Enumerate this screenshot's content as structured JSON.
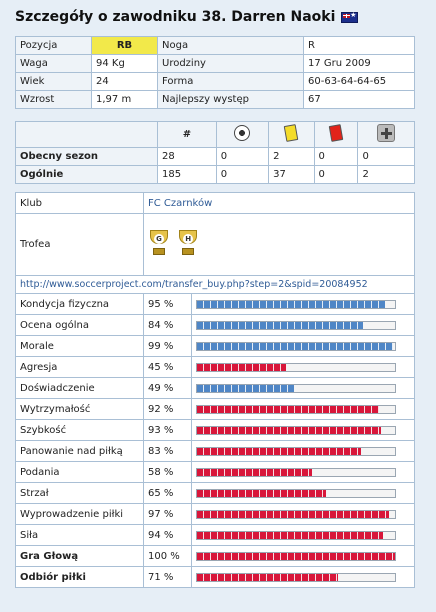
{
  "header": {
    "title": "Szczegóły o zawodniku 38. Darren Naoki",
    "flag": "australia-flag-icon"
  },
  "info": [
    {
      "l1": "Pozycja",
      "v1": "RB",
      "l2": "Noga",
      "v2": "R"
    },
    {
      "l1": "Waga",
      "v1": "94 Kg",
      "l2": "Urodziny",
      "v2": "17 Gru 2009"
    },
    {
      "l1": "Wiek",
      "v1": "24",
      "l2": "Forma",
      "v2": "60-63-64-64-65"
    },
    {
      "l1": "Wzrost",
      "v1": "1,97 m",
      "l2": "Najlepszy występ",
      "v2": "67"
    }
  ],
  "stats": {
    "headers": [
      "#",
      "ball-icon",
      "yellow-card-icon",
      "red-card-icon",
      "injury-cross-icon"
    ],
    "rows": [
      {
        "label": "Obecny sezon",
        "vals": [
          "28",
          "0",
          "2",
          "0",
          "0"
        ]
      },
      {
        "label": "Ogólnie",
        "vals": [
          "185",
          "0",
          "37",
          "0",
          "2"
        ]
      }
    ],
    "colors": {
      "yellow_card": "#f4dc2a",
      "red_card": "#e2231a"
    }
  },
  "club": {
    "label": "Klub",
    "name": "FC Czarnków",
    "trophies_label": "Trofea",
    "trophies": [
      "G",
      "H"
    ],
    "link": "http://www.soccerproject.com/transfer_buy.php?step=2&spid=20084952"
  },
  "skills": [
    {
      "name": "Kondycja fizyczna",
      "value": "95 %",
      "pct": 95,
      "color": "blue",
      "bold": false
    },
    {
      "name": "Ocena ogólna",
      "value": "84 %",
      "pct": 84,
      "color": "blue",
      "bold": false
    },
    {
      "name": "Morale",
      "value": "99 %",
      "pct": 99,
      "color": "blue",
      "bold": false
    },
    {
      "name": "Agresja",
      "value": "45 %",
      "pct": 45,
      "color": "red",
      "bold": false
    },
    {
      "name": "Doświadczenie",
      "value": "49 %",
      "pct": 49,
      "color": "blue",
      "bold": false
    },
    {
      "name": "Wytrzymałość",
      "value": "92 %",
      "pct": 92,
      "color": "red",
      "bold": false
    },
    {
      "name": "Szybkość",
      "value": "93 %",
      "pct": 93,
      "color": "red",
      "bold": false
    },
    {
      "name": "Panowanie nad piłką",
      "value": "83 %",
      "pct": 83,
      "color": "red",
      "bold": false
    },
    {
      "name": "Podania",
      "value": "58 %",
      "pct": 58,
      "color": "red",
      "bold": false
    },
    {
      "name": "Strzał",
      "value": "65 %",
      "pct": 65,
      "color": "red",
      "bold": false
    },
    {
      "name": "Wyprowadzenie piłki",
      "value": "97 %",
      "pct": 97,
      "color": "red",
      "bold": false
    },
    {
      "name": "Siła",
      "value": "94 %",
      "pct": 94,
      "color": "red",
      "bold": false
    },
    {
      "name": "Gra Głową",
      "value": "100 %",
      "pct": 100,
      "color": "red",
      "bold": true
    },
    {
      "name": "Odbiór piłki",
      "value": "71 %",
      "pct": 71,
      "color": "red",
      "bold": true
    }
  ],
  "colors": {
    "bar_blue": "#4f86c6",
    "bar_red": "#d8163a",
    "position_highlight": "#f2e94a"
  }
}
